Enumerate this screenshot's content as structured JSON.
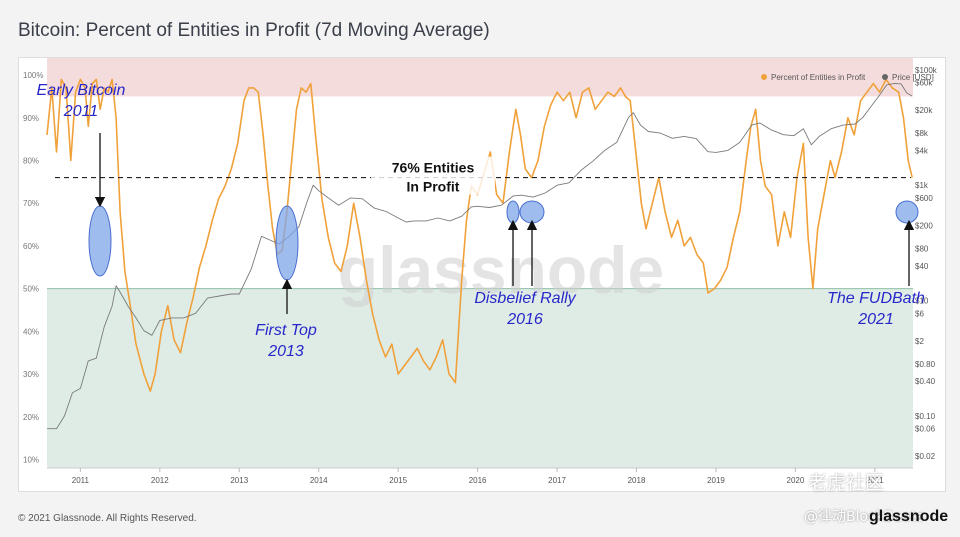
{
  "title": "Bitcoin: Percent of Entities in Profit (7d Moving Average)",
  "footer": "© 2021 Glassnode. All Rights Reserved.",
  "brand": "glassnode",
  "watermark_text": "glassnode",
  "watermark_cn_1": "老虎社区",
  "watermark_cn_2": "@律动BlockBeats",
  "colors": {
    "profit_line": "#f0a13a",
    "price_line": "#7a7a7a",
    "upper_band": "#f4dcdc",
    "lower_band": "#dfece6",
    "annotation": "#2727c9",
    "highlight": "#7fa6e8"
  },
  "legend": {
    "profit": "Percent of Entities in Profit",
    "price": "Price [USD]"
  },
  "chart_data": {
    "type": "line",
    "x_axis": {
      "labels": [
        "2011",
        "2012",
        "2013",
        "2014",
        "2015",
        "2016",
        "2017",
        "2018",
        "2019",
        "2020",
        "2021"
      ],
      "range": [
        2010.58,
        2021.48
      ]
    },
    "y_left": {
      "ticks": [
        "10%",
        "20%",
        "30%",
        "40%",
        "50%",
        "60%",
        "70%",
        "80%",
        "90%",
        "100%"
      ],
      "range": [
        8,
        104
      ]
    },
    "y_right": {
      "scale": "log",
      "ticks": [
        {
          "label": "$100k",
          "value": 100000
        },
        {
          "label": "$60k",
          "value": 60000
        },
        {
          "label": "$20k",
          "value": 20000
        },
        {
          "label": "$8k",
          "value": 8000
        },
        {
          "label": "$4k",
          "value": 4000
        },
        {
          "label": "$1k",
          "value": 1000
        },
        {
          "label": "$600",
          "value": 600
        },
        {
          "label": "$200",
          "value": 200
        },
        {
          "label": "$80",
          "value": 80
        },
        {
          "label": "$40",
          "value": 40
        },
        {
          "label": "$10",
          "value": 10
        },
        {
          "label": "$6",
          "value": 6
        },
        {
          "label": "$2",
          "value": 2
        },
        {
          "label": "$0.80",
          "value": 0.8
        },
        {
          "label": "$0.40",
          "value": 0.4
        },
        {
          "label": "$0.10",
          "value": 0.1
        },
        {
          "label": "$0.06",
          "value": 0.06
        },
        {
          "label": "$0.02",
          "value": 0.02
        }
      ]
    },
    "bands": {
      "upper": [
        95,
        104
      ],
      "lower": [
        8,
        50
      ]
    },
    "reference_line": {
      "value": 76,
      "label_1": "76% Entities",
      "label_2": "In Profit"
    },
    "series": [
      {
        "name": "Percent of Entities in Profit",
        "axis": "left",
        "points": [
          [
            2010.58,
            86
          ],
          [
            2010.64,
            97
          ],
          [
            2010.7,
            82
          ],
          [
            2010.76,
            99
          ],
          [
            2010.82,
            97
          ],
          [
            2010.88,
            80
          ],
          [
            2010.94,
            96
          ],
          [
            2011.0,
            99
          ],
          [
            2011.06,
            97
          ],
          [
            2011.1,
            88
          ],
          [
            2011.15,
            98
          ],
          [
            2011.2,
            99
          ],
          [
            2011.25,
            92
          ],
          [
            2011.3,
            97
          ],
          [
            2011.35,
            96
          ],
          [
            2011.4,
            99
          ],
          [
            2011.45,
            90
          ],
          [
            2011.5,
            68
          ],
          [
            2011.56,
            54
          ],
          [
            2011.62,
            47
          ],
          [
            2011.7,
            37
          ],
          [
            2011.8,
            30
          ],
          [
            2011.88,
            26
          ],
          [
            2011.94,
            30
          ],
          [
            2012.02,
            40
          ],
          [
            2012.1,
            46
          ],
          [
            2012.18,
            38
          ],
          [
            2012.26,
            35
          ],
          [
            2012.34,
            42
          ],
          [
            2012.42,
            48
          ],
          [
            2012.5,
            55
          ],
          [
            2012.58,
            60
          ],
          [
            2012.66,
            66
          ],
          [
            2012.74,
            71
          ],
          [
            2012.82,
            74
          ],
          [
            2012.9,
            78
          ],
          [
            2012.98,
            84
          ],
          [
            2013.06,
            94
          ],
          [
            2013.12,
            97
          ],
          [
            2013.18,
            97
          ],
          [
            2013.24,
            96
          ],
          [
            2013.3,
            86
          ],
          [
            2013.36,
            74
          ],
          [
            2013.42,
            64
          ],
          [
            2013.48,
            58
          ],
          [
            2013.54,
            59
          ],
          [
            2013.6,
            68
          ],
          [
            2013.66,
            80
          ],
          [
            2013.72,
            92
          ],
          [
            2013.78,
            97
          ],
          [
            2013.84,
            96
          ],
          [
            2013.9,
            98
          ],
          [
            2013.96,
            86
          ],
          [
            2014.04,
            71
          ],
          [
            2014.12,
            62
          ],
          [
            2014.2,
            56
          ],
          [
            2014.28,
            54
          ],
          [
            2014.36,
            60
          ],
          [
            2014.44,
            70
          ],
          [
            2014.52,
            62
          ],
          [
            2014.6,
            52
          ],
          [
            2014.68,
            44
          ],
          [
            2014.76,
            38
          ],
          [
            2014.84,
            34
          ],
          [
            2014.92,
            37
          ],
          [
            2015.0,
            30
          ],
          [
            2015.08,
            32
          ],
          [
            2015.16,
            34
          ],
          [
            2015.24,
            36
          ],
          [
            2015.32,
            33
          ],
          [
            2015.4,
            31
          ],
          [
            2015.48,
            34
          ],
          [
            2015.56,
            38
          ],
          [
            2015.64,
            30
          ],
          [
            2015.72,
            28
          ],
          [
            2015.8,
            52
          ],
          [
            2015.86,
            66
          ],
          [
            2015.92,
            74
          ],
          [
            2016.0,
            72
          ],
          [
            2016.08,
            77
          ],
          [
            2016.16,
            82
          ],
          [
            2016.24,
            72
          ],
          [
            2016.32,
            70
          ],
          [
            2016.4,
            82
          ],
          [
            2016.48,
            92
          ],
          [
            2016.54,
            86
          ],
          [
            2016.6,
            78
          ],
          [
            2016.68,
            76
          ],
          [
            2016.76,
            80
          ],
          [
            2016.84,
            88
          ],
          [
            2016.92,
            93
          ],
          [
            2017.0,
            96
          ],
          [
            2017.08,
            94
          ],
          [
            2017.16,
            96
          ],
          [
            2017.24,
            90
          ],
          [
            2017.32,
            96
          ],
          [
            2017.4,
            97
          ],
          [
            2017.48,
            92
          ],
          [
            2017.56,
            94
          ],
          [
            2017.64,
            96
          ],
          [
            2017.72,
            95
          ],
          [
            2017.8,
            97
          ],
          [
            2017.86,
            95
          ],
          [
            2017.92,
            94
          ],
          [
            2017.98,
            84
          ],
          [
            2018.06,
            70
          ],
          [
            2018.12,
            64
          ],
          [
            2018.2,
            70
          ],
          [
            2018.28,
            76
          ],
          [
            2018.36,
            68
          ],
          [
            2018.44,
            62
          ],
          [
            2018.52,
            66
          ],
          [
            2018.6,
            60
          ],
          [
            2018.68,
            62
          ],
          [
            2018.76,
            58
          ],
          [
            2018.84,
            56
          ],
          [
            2018.9,
            49
          ],
          [
            2018.98,
            50
          ],
          [
            2019.06,
            52
          ],
          [
            2019.14,
            55
          ],
          [
            2019.22,
            62
          ],
          [
            2019.3,
            68
          ],
          [
            2019.38,
            80
          ],
          [
            2019.44,
            88
          ],
          [
            2019.5,
            92
          ],
          [
            2019.56,
            80
          ],
          [
            2019.62,
            74
          ],
          [
            2019.7,
            72
          ],
          [
            2019.78,
            60
          ],
          [
            2019.86,
            68
          ],
          [
            2019.94,
            62
          ],
          [
            2020.02,
            76
          ],
          [
            2020.1,
            84
          ],
          [
            2020.16,
            62
          ],
          [
            2020.22,
            50
          ],
          [
            2020.28,
            64
          ],
          [
            2020.36,
            72
          ],
          [
            2020.44,
            80
          ],
          [
            2020.5,
            76
          ],
          [
            2020.58,
            82
          ],
          [
            2020.66,
            90
          ],
          [
            2020.74,
            86
          ],
          [
            2020.82,
            94
          ],
          [
            2020.9,
            96
          ],
          [
            2020.98,
            98
          ],
          [
            2021.06,
            96
          ],
          [
            2021.14,
            99
          ],
          [
            2021.22,
            97
          ],
          [
            2021.3,
            96
          ],
          [
            2021.36,
            90
          ],
          [
            2021.42,
            80
          ],
          [
            2021.47,
            76
          ]
        ]
      },
      {
        "name": "Price [USD]",
        "axis": "right",
        "points": [
          [
            2010.58,
            0.06
          ],
          [
            2010.7,
            0.06
          ],
          [
            2010.8,
            0.1
          ],
          [
            2010.9,
            0.25
          ],
          [
            2011.0,
            0.3
          ],
          [
            2011.1,
            0.9
          ],
          [
            2011.2,
            1
          ],
          [
            2011.3,
            3.5
          ],
          [
            2011.4,
            8
          ],
          [
            2011.45,
            18
          ],
          [
            2011.5,
            14
          ],
          [
            2011.6,
            8
          ],
          [
            2011.7,
            5
          ],
          [
            2011.8,
            3
          ],
          [
            2011.9,
            2.5
          ],
          [
            2012.0,
            4.5
          ],
          [
            2012.15,
            5
          ],
          [
            2012.3,
            5
          ],
          [
            2012.45,
            6
          ],
          [
            2012.6,
            11
          ],
          [
            2012.75,
            12
          ],
          [
            2012.9,
            13
          ],
          [
            2013.0,
            13
          ],
          [
            2013.15,
            35
          ],
          [
            2013.28,
            130
          ],
          [
            2013.4,
            110
          ],
          [
            2013.5,
            95
          ],
          [
            2013.6,
            120
          ],
          [
            2013.75,
            190
          ],
          [
            2013.85,
            500
          ],
          [
            2013.93,
            1000
          ],
          [
            2014.0,
            800
          ],
          [
            2014.12,
            600
          ],
          [
            2014.25,
            450
          ],
          [
            2014.4,
            600
          ],
          [
            2014.55,
            580
          ],
          [
            2014.7,
            400
          ],
          [
            2014.85,
            350
          ],
          [
            2015.0,
            270
          ],
          [
            2015.1,
            230
          ],
          [
            2015.2,
            240
          ],
          [
            2015.35,
            240
          ],
          [
            2015.5,
            270
          ],
          [
            2015.65,
            240
          ],
          [
            2015.8,
            290
          ],
          [
            2015.92,
            420
          ],
          [
            2016.0,
            430
          ],
          [
            2016.15,
            410
          ],
          [
            2016.3,
            450
          ],
          [
            2016.45,
            650
          ],
          [
            2016.55,
            670
          ],
          [
            2016.7,
            620
          ],
          [
            2016.85,
            730
          ],
          [
            2017.0,
            1000
          ],
          [
            2017.15,
            1100
          ],
          [
            2017.3,
            1800
          ],
          [
            2017.45,
            2600
          ],
          [
            2017.6,
            4000
          ],
          [
            2017.75,
            5500
          ],
          [
            2017.9,
            15000
          ],
          [
            2017.96,
            18000
          ],
          [
            2018.05,
            11000
          ],
          [
            2018.15,
            8500
          ],
          [
            2018.3,
            8000
          ],
          [
            2018.45,
            6500
          ],
          [
            2018.6,
            7000
          ],
          [
            2018.75,
            6400
          ],
          [
            2018.9,
            3800
          ],
          [
            2019.0,
            3700
          ],
          [
            2019.15,
            4000
          ],
          [
            2019.3,
            5500
          ],
          [
            2019.45,
            11000
          ],
          [
            2019.55,
            12000
          ],
          [
            2019.7,
            9000
          ],
          [
            2019.85,
            7500
          ],
          [
            2019.98,
            7200
          ],
          [
            2020.1,
            9500
          ],
          [
            2020.2,
            5000
          ],
          [
            2020.3,
            7000
          ],
          [
            2020.45,
            9500
          ],
          [
            2020.6,
            11000
          ],
          [
            2020.75,
            11500
          ],
          [
            2020.85,
            15000
          ],
          [
            2020.95,
            23000
          ],
          [
            2021.05,
            35000
          ],
          [
            2021.15,
            55000
          ],
          [
            2021.25,
            58000
          ],
          [
            2021.33,
            57000
          ],
          [
            2021.4,
            40000
          ],
          [
            2021.47,
            35000
          ]
        ]
      }
    ],
    "annotations": [
      {
        "line1": "Early Bitcoin",
        "line2": "2011"
      },
      {
        "line1": "First Top",
        "line2": "2013"
      },
      {
        "line1": "Disbelief Rally",
        "line2": "2016"
      },
      {
        "line1": "The FUDBath",
        "line2": "2021"
      }
    ]
  }
}
